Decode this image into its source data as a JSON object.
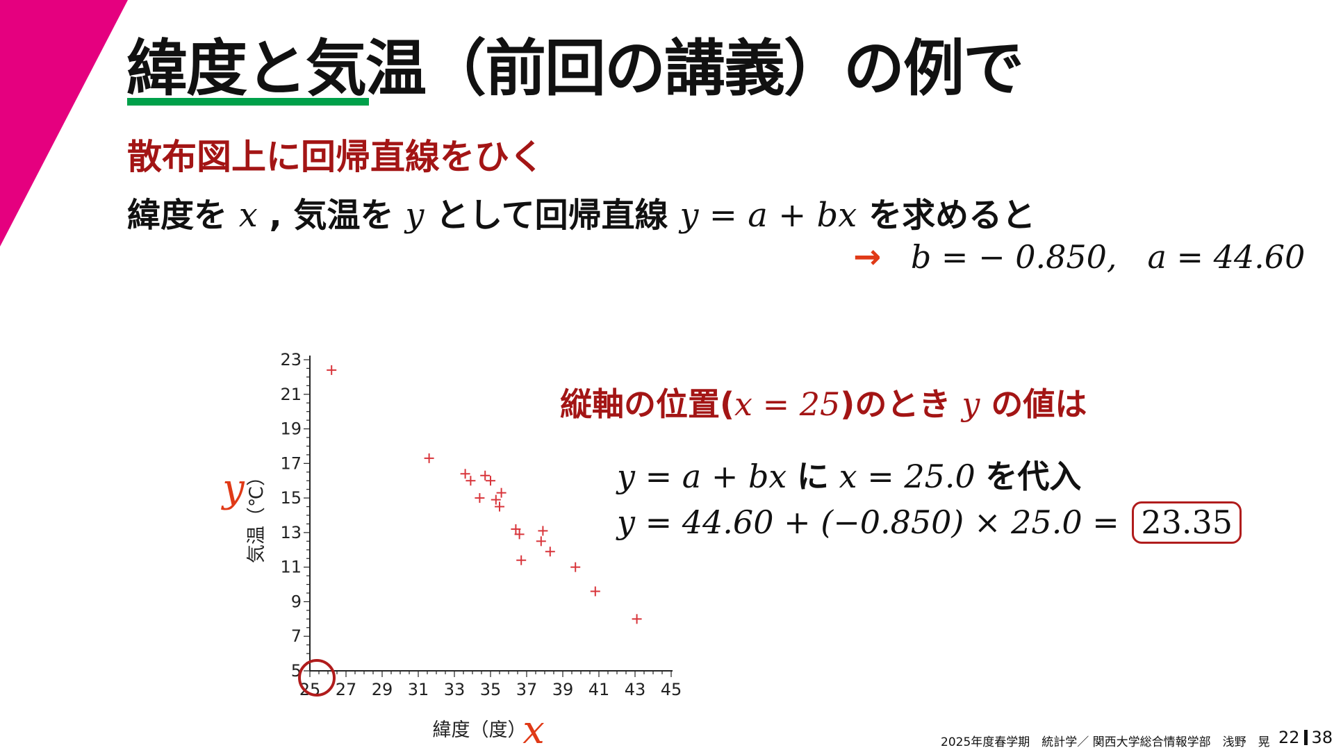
{
  "colors": {
    "accent_magenta": "#e5007f",
    "underline_green": "#00a04a",
    "dark_red": "#a31515",
    "arrow_red": "#e03a17",
    "point_red": "#d8343a",
    "circle_red": "#b01c1c",
    "text": "#111111"
  },
  "title": "緯度と気温（前回の講義）の例で",
  "subtitle": "散布図上に回帰直線をひく",
  "intro": {
    "part1": "緯度を",
    "var_x": "x",
    "comma": ",",
    "part2": "気温を",
    "var_y": "y",
    "part3": "として回帰直線",
    "formula": "y = a + bx",
    "part4": "を求めると"
  },
  "result": {
    "arrow": "→",
    "b_expr": "b = − 0.850,",
    "a_expr": "a = 44.60"
  },
  "note": {
    "part1": "縦軸の位置(",
    "expr": "x = 25",
    "part2": ")のとき",
    "var_y": "y",
    "part3": "の値は"
  },
  "equation1": {
    "formula": "y = a + bx",
    "particle": "に",
    "sub": "x = 25.0",
    "tail": "を代入"
  },
  "equation2": {
    "lhs": "y = 44.60 + (−0.850) × 25.0 =",
    "answer": "23.35"
  },
  "chart_data": {
    "type": "scatter",
    "xlabel": "緯度（度）",
    "ylabel": "気温（℃）",
    "xlabel_var": "x",
    "ylabel_var": "y",
    "xlim": [
      25,
      45
    ],
    "ylim": [
      5,
      23
    ],
    "x_ticks": [
      25,
      27,
      29,
      31,
      33,
      35,
      37,
      39,
      41,
      43,
      45
    ],
    "y_ticks": [
      5,
      7,
      9,
      11,
      13,
      15,
      17,
      19,
      21,
      23
    ],
    "grid": false,
    "highlight_point": [
      25,
      5
    ],
    "points": [
      {
        "x": 26.2,
        "y": 22.4
      },
      {
        "x": 31.6,
        "y": 17.3
      },
      {
        "x": 33.6,
        "y": 16.4
      },
      {
        "x": 33.9,
        "y": 16.0
      },
      {
        "x": 34.7,
        "y": 16.3
      },
      {
        "x": 35.0,
        "y": 16.0
      },
      {
        "x": 34.4,
        "y": 15.0
      },
      {
        "x": 35.3,
        "y": 14.9
      },
      {
        "x": 35.6,
        "y": 15.3
      },
      {
        "x": 35.5,
        "y": 14.5
      },
      {
        "x": 36.4,
        "y": 13.2
      },
      {
        "x": 36.6,
        "y": 12.9
      },
      {
        "x": 36.7,
        "y": 11.4
      },
      {
        "x": 37.9,
        "y": 13.1
      },
      {
        "x": 37.8,
        "y": 12.5
      },
      {
        "x": 38.3,
        "y": 11.9
      },
      {
        "x": 39.7,
        "y": 11.0
      },
      {
        "x": 40.8,
        "y": 9.6
      },
      {
        "x": 43.1,
        "y": 8.0
      }
    ]
  },
  "footer": {
    "text": "2025年度春学期　統計学／ 関西大学総合情報学部　浅野　晃",
    "page_current": "22",
    "page_total": "38"
  }
}
